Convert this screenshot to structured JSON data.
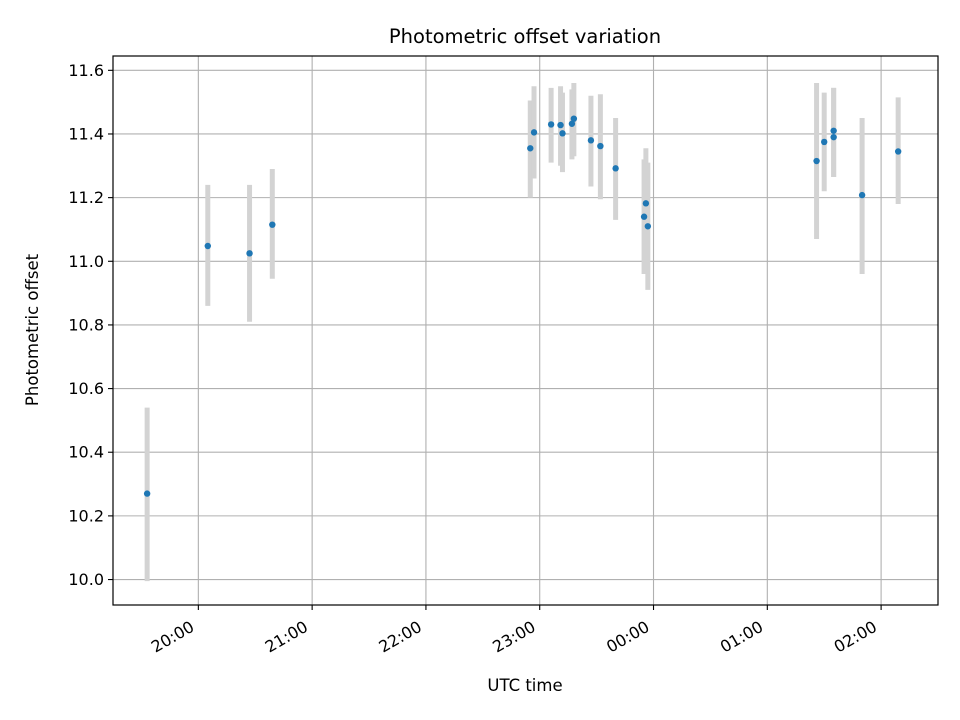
{
  "chart_data": {
    "type": "scatter",
    "title": "Photometric offset variation",
    "xlabel": "UTC time",
    "ylabel": "Photometric offset",
    "x_unit": "hours relative to 00:00 UTC",
    "xlim": [
      -4.75,
      2.5
    ],
    "ylim": [
      9.92,
      11.645
    ],
    "xticks": [
      {
        "value": -4,
        "label": "20:00"
      },
      {
        "value": -3,
        "label": "21:00"
      },
      {
        "value": -2,
        "label": "22:00"
      },
      {
        "value": -1,
        "label": "23:00"
      },
      {
        "value": 0,
        "label": "00:00"
      },
      {
        "value": 1,
        "label": "01:00"
      },
      {
        "value": 2,
        "label": "02:00"
      }
    ],
    "yticks": [
      {
        "value": 10.0,
        "label": "10.0"
      },
      {
        "value": 10.2,
        "label": "10.2"
      },
      {
        "value": 10.4,
        "label": "10.4"
      },
      {
        "value": 10.6,
        "label": "10.6"
      },
      {
        "value": 10.8,
        "label": "10.8"
      },
      {
        "value": 11.0,
        "label": "11.0"
      },
      {
        "value": 11.2,
        "label": "11.2"
      },
      {
        "value": 11.4,
        "label": "11.4"
      },
      {
        "value": 11.6,
        "label": "11.6"
      }
    ],
    "grid": true,
    "point_color": "#1f77b4",
    "errorbar_color": "#d3d3d3",
    "points": [
      {
        "x": -4.45,
        "y": 10.27,
        "yerr_low": 9.995,
        "yerr_high": 10.54
      },
      {
        "x": -3.917,
        "y": 11.048,
        "yerr_low": 10.86,
        "yerr_high": 11.24
      },
      {
        "x": -3.55,
        "y": 11.025,
        "yerr_low": 10.81,
        "yerr_high": 11.24
      },
      {
        "x": -3.35,
        "y": 11.115,
        "yerr_low": 10.945,
        "yerr_high": 11.29
      },
      {
        "x": -1.083,
        "y": 11.355,
        "yerr_low": 11.2,
        "yerr_high": 11.505
      },
      {
        "x": -1.05,
        "y": 11.405,
        "yerr_low": 11.26,
        "yerr_high": 11.55
      },
      {
        "x": -0.9,
        "y": 11.43,
        "yerr_low": 11.31,
        "yerr_high": 11.545
      },
      {
        "x": -0.817,
        "y": 11.428,
        "yerr_low": 11.3,
        "yerr_high": 11.55
      },
      {
        "x": -0.8,
        "y": 11.402,
        "yerr_low": 11.28,
        "yerr_high": 11.53
      },
      {
        "x": -0.717,
        "y": 11.432,
        "yerr_low": 11.32,
        "yerr_high": 11.54
      },
      {
        "x": -0.7,
        "y": 11.448,
        "yerr_low": 11.33,
        "yerr_high": 11.56
      },
      {
        "x": -0.55,
        "y": 11.38,
        "yerr_low": 11.235,
        "yerr_high": 11.52
      },
      {
        "x": -0.467,
        "y": 11.362,
        "yerr_low": 11.195,
        "yerr_high": 11.525
      },
      {
        "x": -0.333,
        "y": 11.292,
        "yerr_low": 11.13,
        "yerr_high": 11.45
      },
      {
        "x": -0.083,
        "y": 11.14,
        "yerr_low": 10.96,
        "yerr_high": 11.32
      },
      {
        "x": -0.067,
        "y": 11.182,
        "yerr_low": 11.005,
        "yerr_high": 11.355
      },
      {
        "x": -0.05,
        "y": 11.11,
        "yerr_low": 10.91,
        "yerr_high": 11.31
      },
      {
        "x": 1.433,
        "y": 11.315,
        "yerr_low": 11.07,
        "yerr_high": 11.56
      },
      {
        "x": 1.5,
        "y": 11.375,
        "yerr_low": 11.22,
        "yerr_high": 11.53
      },
      {
        "x": 1.583,
        "y": 11.39,
        "yerr_low": 11.265,
        "yerr_high": 11.545
      },
      {
        "x": 1.583,
        "y": 11.41,
        "yerr_low": 11.265,
        "yerr_high": 11.545
      },
      {
        "x": 1.833,
        "y": 11.208,
        "yerr_low": 10.96,
        "yerr_high": 11.45
      },
      {
        "x": 2.15,
        "y": 11.345,
        "yerr_low": 11.18,
        "yerr_high": 11.515
      }
    ]
  }
}
